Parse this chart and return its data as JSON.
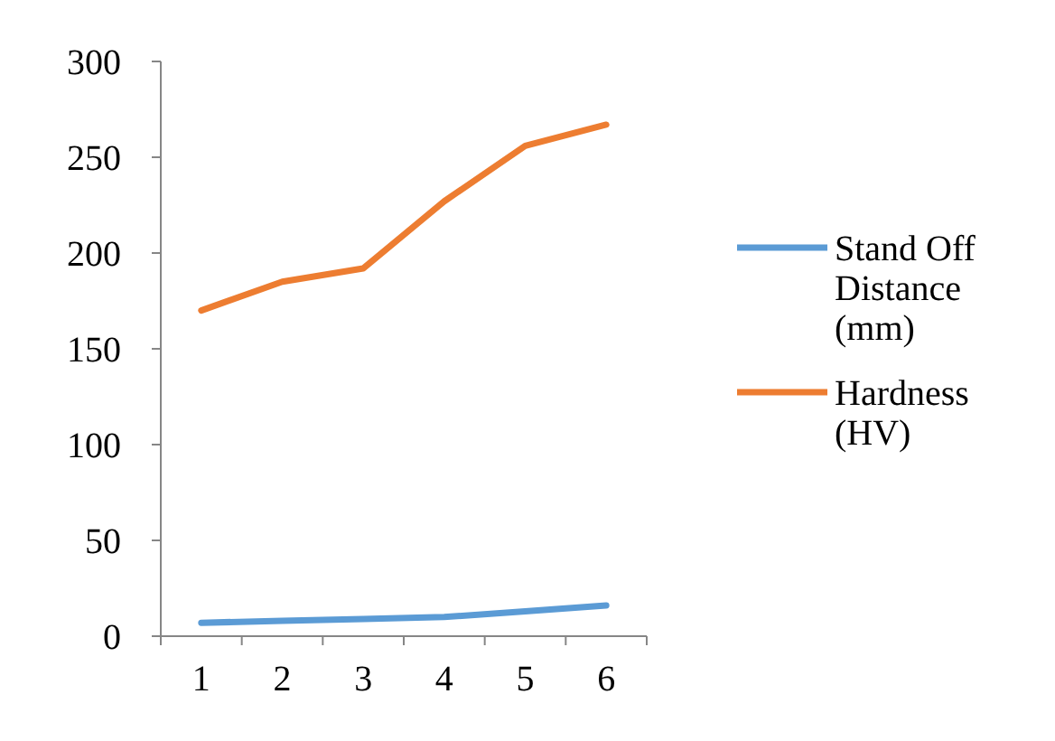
{
  "chart_data": {
    "type": "line",
    "categories": [
      "1",
      "2",
      "3",
      "4",
      "5",
      "6"
    ],
    "series": [
      {
        "name": "Stand Off Distance (mm)",
        "color": "#5b9bd5",
        "values": [
          7,
          8,
          9,
          10,
          13,
          16
        ]
      },
      {
        "name": "Hardness (HV)",
        "color": "#ed7d31",
        "values": [
          170,
          185,
          192,
          227,
          256,
          267
        ]
      }
    ],
    "ylim": [
      0,
      300
    ],
    "yticks": [
      0,
      50,
      100,
      150,
      200,
      250,
      300
    ],
    "grid": false,
    "legend": "right",
    "marker": "none",
    "line_style": "solid"
  }
}
